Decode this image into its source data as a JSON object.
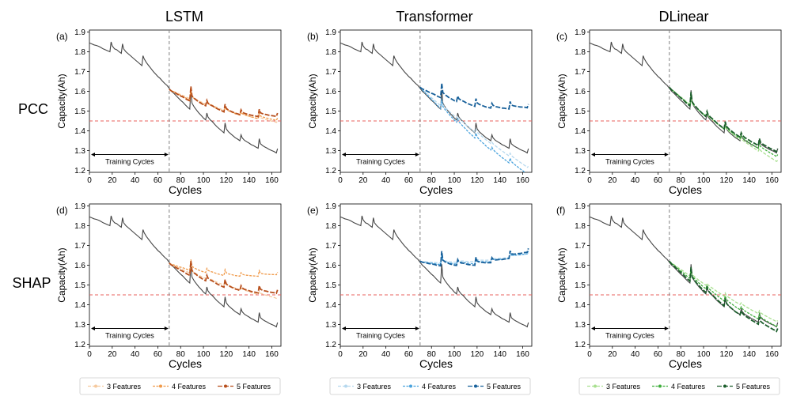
{
  "figure": {
    "column_titles": [
      "LSTM",
      "Transformer",
      "DLinear"
    ],
    "row_labels": [
      "PCC",
      "SHAP"
    ]
  },
  "colors": {
    "actual": "#444444",
    "threshold": "#e8615d",
    "split_line": "#7f7f7f",
    "lstm": [
      "#f6c99d",
      "#f09a4a",
      "#b74e1b"
    ],
    "transformer": [
      "#b5d8ee",
      "#4aa3dd",
      "#17609a"
    ],
    "dlinear": [
      "#a8e08f",
      "#3fae3c",
      "#1c5e2c"
    ]
  },
  "legends": [
    {
      "entries": [
        "3 Features",
        "4 Features",
        "5 Features"
      ]
    },
    {
      "entries": [
        "3 Features",
        "4 Features",
        "5 Features"
      ]
    },
    {
      "entries": [
        "3 Features",
        "4 Features",
        "5 Features"
      ]
    }
  ],
  "chart_data": [
    {
      "type": "line",
      "panel": "(a)",
      "model": "LSTM",
      "method": "PCC",
      "xlabel": "Cycles",
      "ylabel": "Capacity(Ah)",
      "xlim": [
        0,
        168
      ],
      "ylim": [
        1.19,
        1.91
      ],
      "xticks": [
        0,
        20,
        40,
        60,
        80,
        100,
        120,
        140,
        160
      ],
      "yticks": [
        1.2,
        1.3,
        1.4,
        1.5,
        1.6,
        1.7,
        1.8,
        1.9
      ],
      "threshold": 1.45,
      "train_end": 70,
      "annotation": "Training Cycles",
      "series": [
        {
          "name": "3 Features",
          "start": 1.61,
          "end": 1.45
        },
        {
          "name": "4 Features",
          "start": 1.61,
          "end": 1.465
        },
        {
          "name": "5 Features",
          "start": 1.61,
          "end": 1.49
        }
      ]
    },
    {
      "type": "line",
      "panel": "(b)",
      "model": "Transformer",
      "method": "PCC",
      "xlabel": "Cycles",
      "ylabel": "Capacity(Ah)",
      "xlim": [
        0,
        168
      ],
      "ylim": [
        1.19,
        1.91
      ],
      "xticks": [
        0,
        20,
        40,
        60,
        80,
        100,
        120,
        140,
        160
      ],
      "yticks": [
        1.2,
        1.3,
        1.4,
        1.5,
        1.6,
        1.7,
        1.8,
        1.9
      ],
      "threshold": 1.45,
      "train_end": 70,
      "annotation": "Training Cycles",
      "series": [
        {
          "name": "3 Features",
          "start": 1.62,
          "end": 1.22
        },
        {
          "name": "4 Features",
          "start": 1.62,
          "end": 1.19
        },
        {
          "name": "5 Features",
          "start": 1.62,
          "end": 1.535
        }
      ]
    },
    {
      "type": "line",
      "panel": "(c)",
      "model": "DLinear",
      "method": "PCC",
      "xlabel": "Cycles",
      "ylabel": "Capacity(Ah)",
      "xlim": [
        0,
        168
      ],
      "ylim": [
        1.19,
        1.91
      ],
      "xticks": [
        0,
        20,
        40,
        60,
        80,
        100,
        120,
        140,
        160
      ],
      "yticks": [
        1.2,
        1.3,
        1.4,
        1.5,
        1.6,
        1.7,
        1.8,
        1.9
      ],
      "threshold": 1.45,
      "train_end": 70,
      "annotation": "Training Cycles",
      "series": [
        {
          "name": "3 Features",
          "start": 1.62,
          "end": 1.25
        },
        {
          "name": "4 Features",
          "start": 1.62,
          "end": 1.28
        },
        {
          "name": "5 Features",
          "start": 1.62,
          "end": 1.31
        }
      ]
    },
    {
      "type": "line",
      "panel": "(d)",
      "model": "LSTM",
      "method": "SHAP",
      "xlabel": "Cycles",
      "ylabel": "Capacity(Ah)",
      "xlim": [
        0,
        168
      ],
      "ylim": [
        1.19,
        1.91
      ],
      "xticks": [
        0,
        20,
        40,
        60,
        80,
        100,
        120,
        140,
        160
      ],
      "yticks": [
        1.2,
        1.3,
        1.4,
        1.5,
        1.6,
        1.7,
        1.8,
        1.9
      ],
      "threshold": 1.45,
      "train_end": 70,
      "annotation": "Training Cycles",
      "series": [
        {
          "name": "3 Features",
          "start": 1.61,
          "end": 1.44
        },
        {
          "name": "4 Features",
          "start": 1.61,
          "end": 1.565
        },
        {
          "name": "5 Features",
          "start": 1.61,
          "end": 1.475
        }
      ]
    },
    {
      "type": "line",
      "panel": "(e)",
      "model": "Transformer",
      "method": "SHAP",
      "xlabel": "Cycles",
      "ylabel": "Capacity(Ah)",
      "xlim": [
        0,
        168
      ],
      "ylim": [
        1.19,
        1.91
      ],
      "xticks": [
        0,
        20,
        40,
        60,
        80,
        100,
        120,
        140,
        160
      ],
      "yticks": [
        1.2,
        1.3,
        1.4,
        1.5,
        1.6,
        1.7,
        1.8,
        1.9
      ],
      "threshold": 1.45,
      "train_end": 70,
      "annotation": "Training Cycles",
      "series": [
        {
          "name": "3 Features",
          "start": 1.62,
          "end": 1.665
        },
        {
          "name": "4 Features",
          "start": 1.62,
          "end": 1.672
        },
        {
          "name": "5 Features",
          "start": 1.62,
          "end": 1.685
        }
      ]
    },
    {
      "type": "line",
      "panel": "(f)",
      "model": "DLinear",
      "method": "SHAP",
      "xlabel": "Cycles",
      "ylabel": "Capacity(Ah)",
      "xlim": [
        0,
        168
      ],
      "ylim": [
        1.19,
        1.91
      ],
      "xticks": [
        0,
        20,
        40,
        60,
        80,
        100,
        120,
        140,
        160
      ],
      "yticks": [
        1.2,
        1.3,
        1.4,
        1.5,
        1.6,
        1.7,
        1.8,
        1.9
      ],
      "threshold": 1.45,
      "train_end": 70,
      "annotation": "Training Cycles",
      "series": [
        {
          "name": "3 Features",
          "start": 1.62,
          "end": 1.32
        },
        {
          "name": "4 Features",
          "start": 1.62,
          "end": 1.3
        },
        {
          "name": "5 Features",
          "start": 1.62,
          "end": 1.28
        }
      ]
    }
  ],
  "actual_capacity": {
    "x": [
      0,
      2,
      4,
      6,
      8,
      10,
      12,
      14,
      16,
      18,
      19,
      20,
      22,
      24,
      26,
      28,
      29,
      30,
      32,
      34,
      36,
      38,
      40,
      42,
      44,
      46,
      47,
      48,
      50,
      52,
      54,
      56,
      58,
      60,
      62,
      64,
      66,
      68,
      70,
      72,
      74,
      76,
      78,
      80,
      82,
      84,
      86,
      88,
      89,
      90,
      92,
      94,
      96,
      98,
      100,
      102,
      103,
      104,
      106,
      108,
      110,
      112,
      114,
      116,
      118,
      119,
      120,
      122,
      124,
      126,
      128,
      130,
      132,
      133,
      134,
      136,
      138,
      140,
      142,
      144,
      146,
      148,
      149,
      150,
      152,
      154,
      156,
      158,
      160,
      162,
      164,
      165
    ],
    "y": [
      1.845,
      1.84,
      1.835,
      1.832,
      1.828,
      1.822,
      1.815,
      1.81,
      1.805,
      1.8,
      1.85,
      1.83,
      1.815,
      1.81,
      1.8,
      1.792,
      1.84,
      1.815,
      1.8,
      1.79,
      1.78,
      1.77,
      1.76,
      1.75,
      1.74,
      1.73,
      1.78,
      1.765,
      1.745,
      1.73,
      1.715,
      1.7,
      1.688,
      1.675,
      1.665,
      1.652,
      1.64,
      1.63,
      1.615,
      1.6,
      1.59,
      1.578,
      1.566,
      1.555,
      1.545,
      1.532,
      1.52,
      1.51,
      1.605,
      1.54,
      1.52,
      1.505,
      1.49,
      1.478,
      1.465,
      1.455,
      1.49,
      1.47,
      1.455,
      1.445,
      1.432,
      1.42,
      1.41,
      1.4,
      1.39,
      1.44,
      1.41,
      1.395,
      1.385,
      1.375,
      1.365,
      1.358,
      1.35,
      1.38,
      1.365,
      1.352,
      1.345,
      1.338,
      1.33,
      1.325,
      1.318,
      1.312,
      1.36,
      1.335,
      1.325,
      1.318,
      1.312,
      1.305,
      1.3,
      1.295,
      1.288,
      1.31
    ]
  }
}
